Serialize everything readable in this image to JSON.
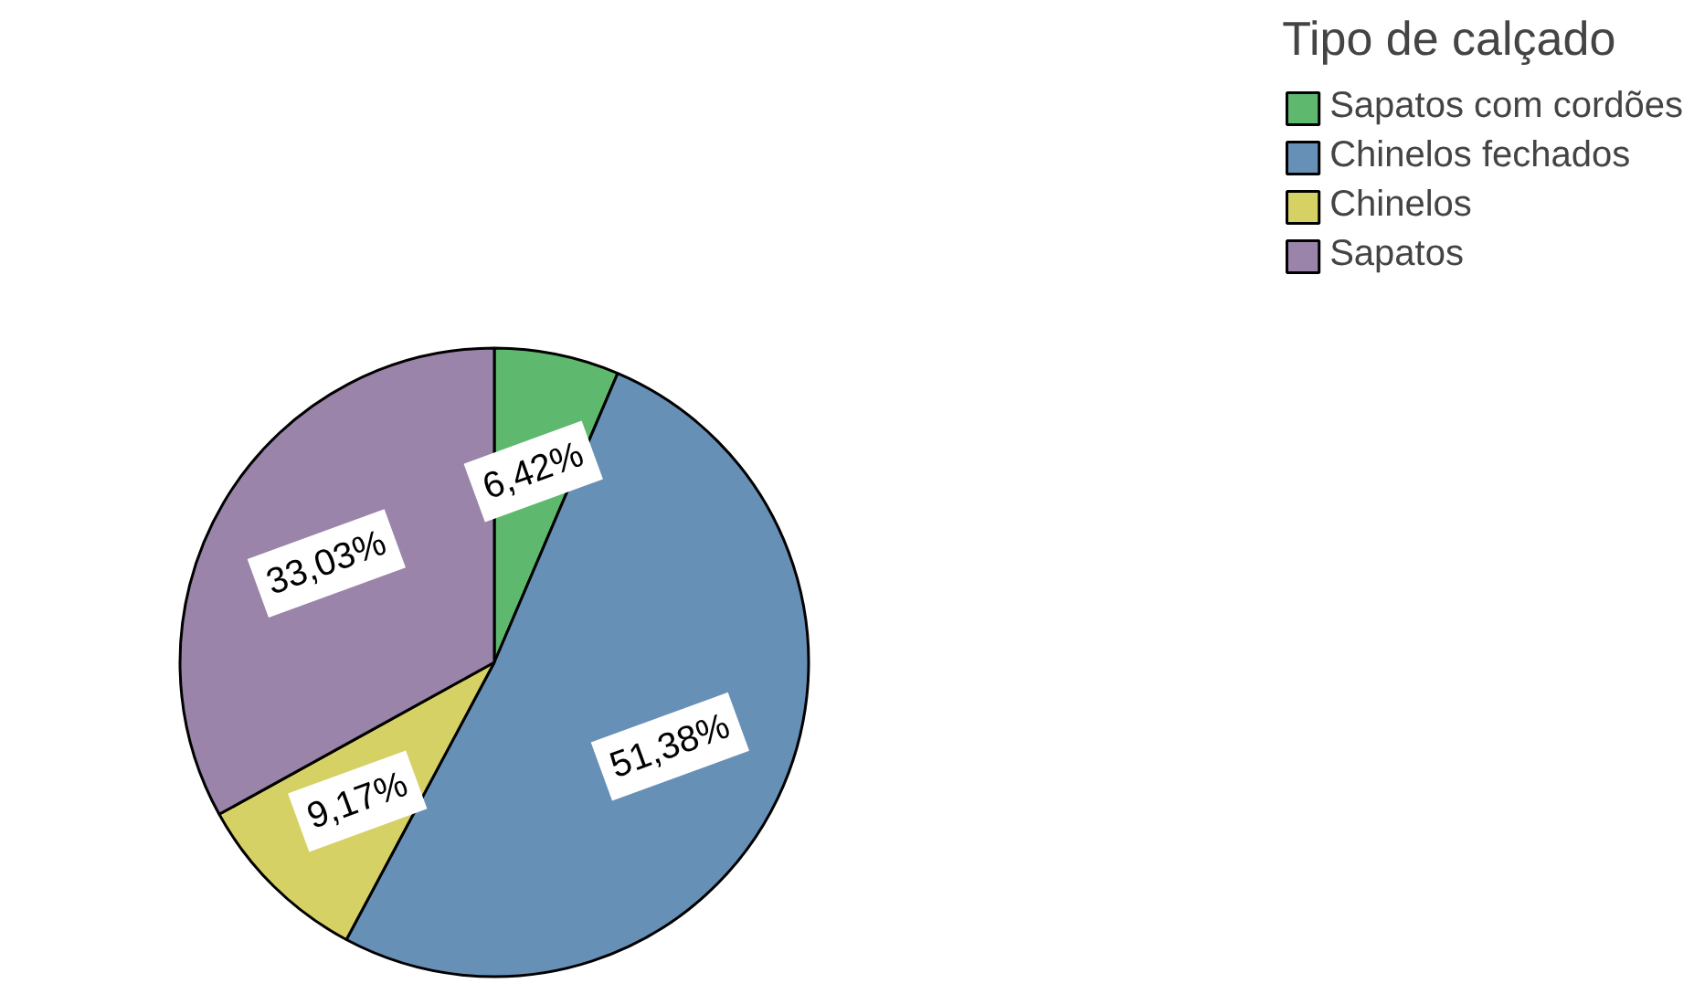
{
  "chart_data": {
    "type": "pie",
    "legend_title": "Tipo de calçado",
    "categories": [
      "Sapatos com cordões",
      "Chinelos fechados",
      "Chinelos",
      "Sapatos"
    ],
    "values": [
      6.42,
      51.38,
      9.17,
      33.03
    ],
    "colors": [
      "#5eb96f",
      "#6790b7",
      "#d6d165",
      "#9b84aa"
    ],
    "value_labels": [
      "6,42%",
      "51,38%",
      "9,17%",
      "33,03%"
    ],
    "legend": "top right"
  }
}
